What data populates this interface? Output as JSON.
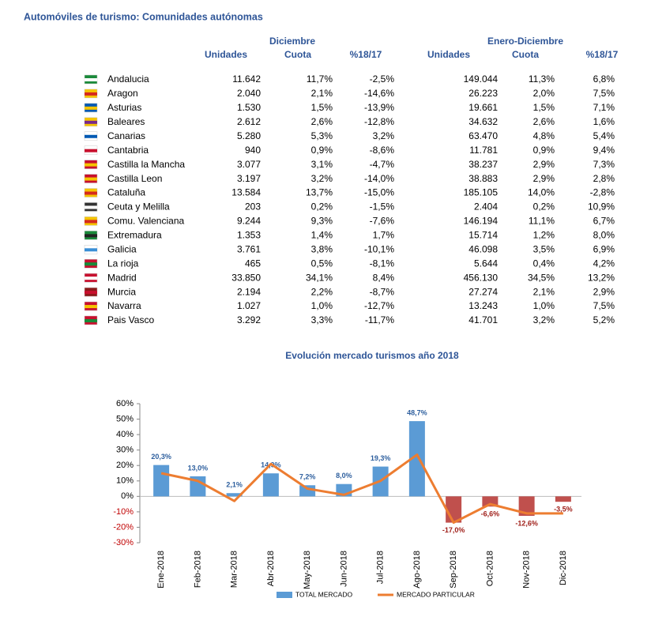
{
  "header": {
    "title": "Automóviles de turismo: Comunidades autónomas"
  },
  "table": {
    "group_headers": [
      "Diciembre",
      "Enero-Diciembre"
    ],
    "columns": [
      "Unidades",
      "Cuota",
      "%18/17",
      "Unidades",
      "Cuota",
      "%18/17"
    ],
    "rows": [
      [
        "Andalucia",
        "11.642",
        "11,7%",
        "-2,5%",
        "149.044",
        "11,3%",
        "6,8%"
      ],
      [
        "Aragon",
        "2.040",
        "2,1%",
        "-14,6%",
        "26.223",
        "2,0%",
        "7,5%"
      ],
      [
        "Asturias",
        "1.530",
        "1,5%",
        "-13,9%",
        "19.661",
        "1,5%",
        "7,1%"
      ],
      [
        "Baleares",
        "2.612",
        "2,6%",
        "-12,8%",
        "34.632",
        "2,6%",
        "1,6%"
      ],
      [
        "Canarias",
        "5.280",
        "5,3%",
        "3,2%",
        "63.470",
        "4,8%",
        "5,4%"
      ],
      [
        "Cantabria",
        "940",
        "0,9%",
        "-8,6%",
        "11.781",
        "0,9%",
        "9,4%"
      ],
      [
        "Castilla la Mancha",
        "3.077",
        "3,1%",
        "-4,7%",
        "38.237",
        "2,9%",
        "7,3%"
      ],
      [
        "Castilla Leon",
        "3.197",
        "3,2%",
        "-14,0%",
        "38.883",
        "2,9%",
        "2,8%"
      ],
      [
        "Cataluña",
        "13.584",
        "13,7%",
        "-15,0%",
        "185.105",
        "14,0%",
        "-2,8%"
      ],
      [
        "Ceuta y Melilla",
        "203",
        "0,2%",
        "-1,5%",
        "2.404",
        "0,2%",
        "10,9%"
      ],
      [
        "Comu. Valenciana",
        "9.244",
        "9,3%",
        "-7,6%",
        "146.194",
        "11,1%",
        "6,7%"
      ],
      [
        "Extremadura",
        "1.353",
        "1,4%",
        "1,7%",
        "15.714",
        "1,2%",
        "8,0%"
      ],
      [
        "Galicia",
        "3.761",
        "3,8%",
        "-10,1%",
        "46.098",
        "3,5%",
        "6,9%"
      ],
      [
        "La rioja",
        "465",
        "0,5%",
        "-8,1%",
        "5.644",
        "0,4%",
        "4,2%"
      ],
      [
        "Madrid",
        "33.850",
        "34,1%",
        "8,4%",
        "456.130",
        "34,5%",
        "13,2%"
      ],
      [
        "Murcia",
        "2.194",
        "2,2%",
        "-8,7%",
        "27.274",
        "2,1%",
        "2,9%"
      ],
      [
        "Navarra",
        "1.027",
        "1,0%",
        "-12,7%",
        "13.243",
        "1,0%",
        "7,5%"
      ],
      [
        "Pais Vasco",
        "3.292",
        "3,3%",
        "-11,7%",
        "41.701",
        "3,2%",
        "5,2%"
      ]
    ]
  },
  "chart_data": {
    "type": "bar",
    "title": "Evolución mercado turismos año 2018",
    "categories": [
      "Ene-2018",
      "Feb-2018",
      "Mar-2018",
      "Abr-2018",
      "May-2018",
      "Jun-2018",
      "Jul-2018",
      "Ago-2018",
      "Sep-2018",
      "Oct-2018",
      "Nov-2018",
      "Dic-2018"
    ],
    "series": [
      {
        "name": "TOTAL MERCADO",
        "type": "bar",
        "color": "#5b9bd5",
        "negative_color": "#c0504d",
        "label_color": "#2e5f9e",
        "negative_label_color": "#a0201a",
        "values": [
          20.3,
          13.0,
          2.1,
          14.9,
          7.2,
          8.0,
          19.3,
          48.7,
          -17.0,
          -6.6,
          -12.6,
          -3.5
        ],
        "value_labels": [
          "20,3%",
          "13,0%",
          "2,1%",
          "14,9%",
          "7,2%",
          "8,0%",
          "19,3%",
          "48,7%",
          "-17,0%",
          "-6,6%",
          "-12,6%",
          "-3,5%"
        ]
      },
      {
        "name": "MERCADO PARTICULAR",
        "type": "line",
        "color": "#ed7d31",
        "values": [
          15,
          10,
          -3,
          21,
          5,
          1,
          10,
          27,
          -17,
          -5,
          -11,
          -11
        ]
      }
    ],
    "ylim": [
      -30,
      60
    ],
    "yticks": [
      {
        "value": -30,
        "label": "-30%"
      },
      {
        "value": -20,
        "label": "-20%"
      },
      {
        "value": -10,
        "label": "-10%"
      },
      {
        "value": 0,
        "label": "0%"
      },
      {
        "value": 10,
        "label": "10%"
      },
      {
        "value": 20,
        "label": "20%"
      },
      {
        "value": 30,
        "label": "30%"
      },
      {
        "value": 40,
        "label": "40%"
      },
      {
        "value": 50,
        "label": "50%"
      },
      {
        "value": 60,
        "label": "60%"
      }
    ],
    "negative_tick_color": "#c00000"
  }
}
